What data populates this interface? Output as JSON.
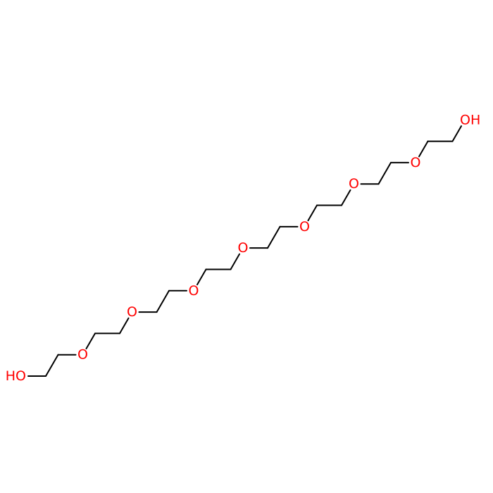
{
  "molecule": {
    "atoms": [
      {
        "label": "HO",
        "element": "O",
        "terminal": "left"
      },
      {
        "label": "O",
        "element": "O"
      },
      {
        "label": "O",
        "element": "O"
      },
      {
        "label": "O",
        "element": "O"
      },
      {
        "label": "O",
        "element": "O"
      },
      {
        "label": "O",
        "element": "O"
      },
      {
        "label": "O",
        "element": "O"
      },
      {
        "label": "O",
        "element": "O"
      },
      {
        "label": "OH",
        "element": "O",
        "terminal": "right"
      }
    ],
    "repeat_unit": "CH2-CH2",
    "colors": {
      "bond": "#000000",
      "oxygen": "#ff0000",
      "background": "#ffffff"
    }
  }
}
